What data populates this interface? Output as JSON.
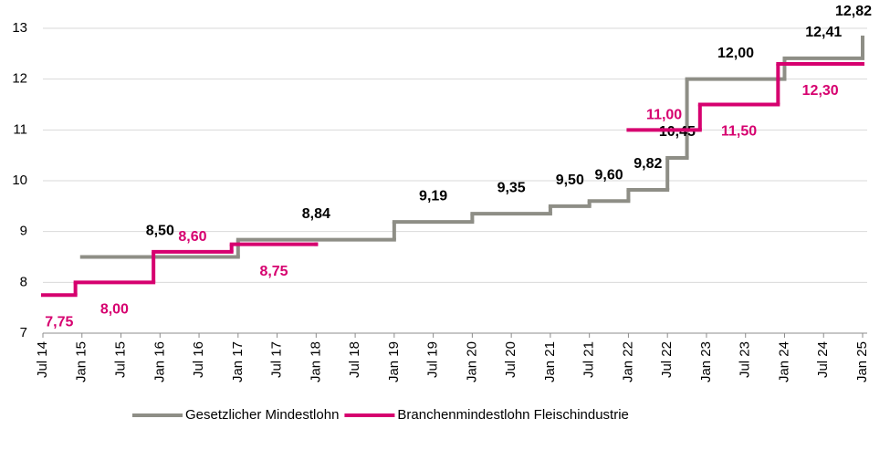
{
  "chart_data": {
    "type": "step-line",
    "xlim": [
      "2014-07",
      "2025-01"
    ],
    "xticks": [
      {
        "value": "2014-07",
        "label": "Jul 14"
      },
      {
        "value": "2015-01",
        "label": "Jan 15"
      },
      {
        "value": "2015-07",
        "label": "Jul 15"
      },
      {
        "value": "2016-01",
        "label": "Jan 16"
      },
      {
        "value": "2016-07",
        "label": "Jul 16"
      },
      {
        "value": "2017-01",
        "label": "Jan 17"
      },
      {
        "value": "2017-07",
        "label": "Jul 17"
      },
      {
        "value": "2018-01",
        "label": "Jan 18"
      },
      {
        "value": "2018-07",
        "label": "Jul 18"
      },
      {
        "value": "2019-01",
        "label": "Jan 19"
      },
      {
        "value": "2019-07",
        "label": "Jul 19"
      },
      {
        "value": "2020-01",
        "label": "Jan 20"
      },
      {
        "value": "2020-07",
        "label": "Jul 20"
      },
      {
        "value": "2021-01",
        "label": "Jan 21"
      },
      {
        "value": "2021-07",
        "label": "Jul 21"
      },
      {
        "value": "2022-01",
        "label": "Jan 22"
      },
      {
        "value": "2022-07",
        "label": "Jul 22"
      },
      {
        "value": "2023-01",
        "label": "Jan 23"
      },
      {
        "value": "2023-07",
        "label": "Jul 23"
      },
      {
        "value": "2024-01",
        "label": "Jan 24"
      },
      {
        "value": "2024-07",
        "label": "Jul 24"
      },
      {
        "value": "2025-01",
        "label": "Jan 25"
      }
    ],
    "ylim": [
      7,
      13
    ],
    "yticks": [
      7,
      8,
      9,
      10,
      11,
      12,
      13
    ],
    "grid": true,
    "legend": "bottom",
    "series": [
      {
        "name": "Gesetzlicher Mindestlohn",
        "color": "#8e8e86",
        "x": [
          "2015-01",
          "2017-01",
          "2019-01",
          "2020-01",
          "2021-01",
          "2021-07",
          "2022-01",
          "2022-07",
          "2022-10",
          "2024-01",
          "2025-01"
        ],
        "values": [
          8.5,
          8.84,
          9.19,
          9.35,
          9.5,
          9.6,
          9.82,
          10.45,
          12.0,
          12.41,
          12.82
        ],
        "value_labels": [
          "8,50",
          "8,84",
          "9,19",
          "9,35",
          "9,50",
          "9,60",
          "9,82",
          "10,45",
          "12,00",
          "12,41",
          "12,82"
        ]
      },
      {
        "name": "Branchenmindestlohn Fleischindustrie",
        "color": "#d6006f",
        "x": [
          "2014-07",
          "2014-12",
          "2015-12",
          "2016-12",
          "2018-01",
          null,
          "2022-01",
          "2022-12",
          "2023-12",
          "2025-01"
        ],
        "values": [
          7.75,
          8.0,
          8.6,
          8.75,
          8.75,
          null,
          11.0,
          11.5,
          12.3,
          12.3
        ],
        "value_labels": [
          "7,75",
          "8,00",
          "8,60",
          "8,75",
          null,
          null,
          "11,00",
          "11,50",
          "12,30",
          null
        ]
      }
    ]
  }
}
